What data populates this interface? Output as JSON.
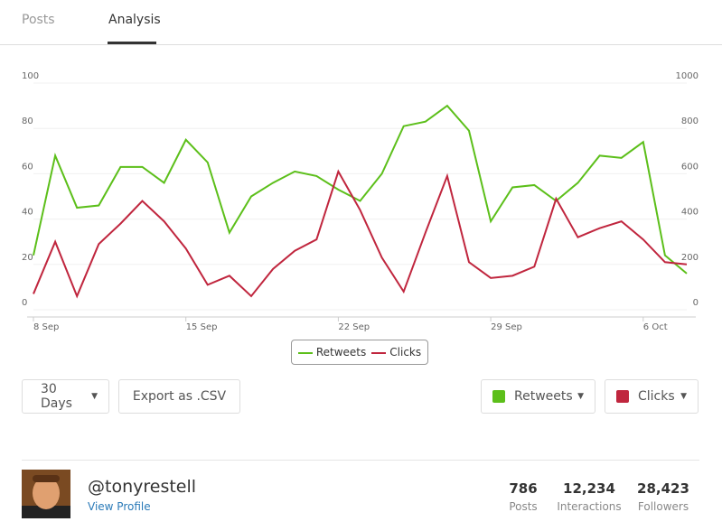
{
  "tabs": [
    "Posts",
    "Analysis"
  ],
  "chart_data": {
    "type": "line",
    "categories": [
      "8 Sep",
      null,
      null,
      null,
      null,
      null,
      null,
      "15 Sep",
      null,
      null,
      null,
      null,
      null,
      null,
      "22 Sep",
      null,
      null,
      null,
      null,
      null,
      null,
      "29 Sep",
      null,
      null,
      null,
      null,
      null,
      null,
      "6 Oct",
      null,
      null
    ],
    "series": [
      {
        "name": "Retweets",
        "color": "#5cbf1a",
        "values": [
          24,
          68,
          45,
          46,
          63,
          63,
          56,
          75,
          65,
          34,
          50,
          56,
          61,
          59,
          53,
          48,
          60,
          81,
          83,
          90,
          79,
          39,
          54,
          55,
          48,
          56,
          68,
          67,
          74,
          24,
          16
        ]
      },
      {
        "name": "Clicks",
        "color": "#c0263e",
        "axis": "y2",
        "values": [
          70,
          300,
          60,
          290,
          380,
          480,
          390,
          270,
          110,
          150,
          60,
          180,
          260,
          310,
          610,
          440,
          230,
          80,
          340,
          590,
          210,
          140,
          150,
          190,
          490,
          320,
          360,
          390,
          310,
          210,
          200
        ]
      }
    ],
    "ylim": [
      0,
      100
    ],
    "yticks": [
      0,
      20,
      40,
      60,
      80,
      100
    ],
    "y2lim": [
      0,
      1000
    ],
    "y2ticks": [
      0,
      200,
      400,
      600,
      800,
      1000
    ],
    "grid": true,
    "legend": "bottom"
  },
  "controls": {
    "range": "30 Days",
    "export": "Export as .CSV"
  },
  "profile": {
    "handle": "@tonyrestell",
    "link": "View Profile",
    "stats": [
      {
        "value": "786",
        "label": "Posts"
      },
      {
        "value": "12,234",
        "label": "Interactions"
      },
      {
        "value": "28,423",
        "label": "Followers"
      }
    ]
  }
}
